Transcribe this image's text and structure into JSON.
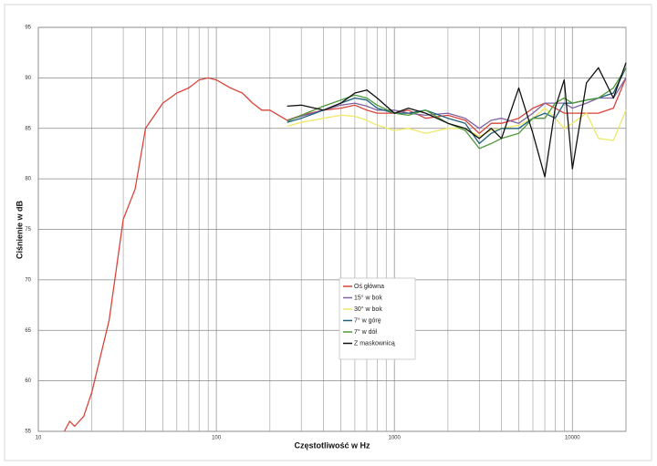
{
  "chart_data": {
    "type": "line",
    "x_label": "Częstotliwość w Hz",
    "y_label": "Ciśnienie w dB",
    "x": [
      14,
      15,
      16,
      18,
      20,
      25,
      30,
      35,
      40,
      50,
      60,
      70,
      80,
      90,
      100,
      120,
      140,
      160,
      180,
      200,
      250,
      300,
      400,
      500,
      600,
      700,
      800,
      1000,
      1200,
      1500,
      2000,
      2500,
      3000,
      3500,
      4000,
      5000,
      6000,
      7000,
      8000,
      9000,
      10000,
      12000,
      14000,
      17000,
      20000
    ],
    "xlog": true,
    "xlim": [
      10,
      20000
    ],
    "xticks": [
      10,
      100,
      1000,
      10000
    ],
    "ylim": [
      55,
      95
    ],
    "yticks": [
      55,
      60,
      65,
      70,
      75,
      80,
      85,
      90,
      95
    ],
    "grid": true,
    "legend": "center",
    "series": [
      {
        "name": "Oś główna",
        "color": "#d9443a",
        "values": [
          55,
          56,
          55.5,
          56.5,
          58.9,
          66,
          76,
          79,
          85,
          87.5,
          88.5,
          89,
          89.8,
          90,
          89.8,
          89,
          88.5,
          87.5,
          86.8,
          86.8,
          85.8,
          86.3,
          86.8,
          87,
          87.3,
          86.8,
          86.5,
          86.5,
          86.8,
          86,
          86.3,
          85.8,
          84.5,
          85.5,
          85.5,
          86,
          87,
          87.5,
          87,
          86.5,
          86.5,
          86.5,
          86.5,
          87,
          90
        ]
      },
      {
        "name": "15° w bok",
        "color": "#8064a2",
        "values": [
          null,
          null,
          null,
          null,
          null,
          null,
          null,
          null,
          null,
          null,
          null,
          null,
          null,
          null,
          null,
          null,
          null,
          null,
          null,
          null,
          85.8,
          86.2,
          86.8,
          87.3,
          87.5,
          87.2,
          86.8,
          86.8,
          86.5,
          86.3,
          86.5,
          86,
          85,
          85.8,
          86,
          85.5,
          86.5,
          87.5,
          87.5,
          87.5,
          87,
          87.5,
          88,
          88,
          90
        ]
      },
      {
        "name": "30° w bok",
        "color": "#eee86a",
        "values": [
          null,
          null,
          null,
          null,
          null,
          null,
          null,
          null,
          null,
          null,
          null,
          null,
          null,
          null,
          null,
          null,
          null,
          null,
          null,
          null,
          85.2,
          85.6,
          86,
          86.3,
          86.2,
          85.8,
          85.3,
          84.8,
          85,
          84.5,
          85,
          85,
          84.2,
          84.8,
          85,
          85.3,
          86,
          87,
          86,
          85,
          85.5,
          86.5,
          84,
          83.8,
          86.8
        ]
      },
      {
        "name": "7° w górę",
        "color": "#1f5f7a",
        "values": [
          null,
          null,
          null,
          null,
          null,
          null,
          null,
          null,
          null,
          null,
          null,
          null,
          null,
          null,
          null,
          null,
          null,
          null,
          null,
          null,
          85.6,
          86,
          86.8,
          87.5,
          88,
          87.8,
          87,
          86.5,
          86.5,
          86.8,
          86,
          85.5,
          83.5,
          84.5,
          85,
          85,
          86,
          86.5,
          86,
          87.5,
          87.5,
          87.8,
          88,
          88.5,
          91
        ]
      },
      {
        "name": "7° w dół",
        "color": "#4e9a3a",
        "values": [
          null,
          null,
          null,
          null,
          null,
          null,
          null,
          null,
          null,
          null,
          null,
          null,
          null,
          null,
          null,
          null,
          null,
          null,
          null,
          null,
          85.7,
          86.3,
          87.2,
          87.8,
          88.3,
          88,
          87.3,
          86.5,
          86.3,
          86.8,
          85.5,
          84.8,
          83,
          83.5,
          84,
          84.5,
          86,
          86,
          87.5,
          88,
          87.5,
          87.8,
          88,
          89,
          91
        ]
      },
      {
        "name": "Z maskownicą",
        "color": "#111111",
        "values": [
          null,
          null,
          null,
          null,
          null,
          null,
          null,
          null,
          null,
          null,
          null,
          null,
          null,
          null,
          null,
          null,
          null,
          null,
          null,
          null,
          87.2,
          87.3,
          86.8,
          87.5,
          88.5,
          88.8,
          88,
          86.5,
          87,
          86.5,
          85.5,
          85,
          84,
          85,
          84,
          89,
          84.5,
          80.2,
          87,
          89.8,
          81,
          89.5,
          91,
          88,
          91.5
        ]
      }
    ]
  }
}
